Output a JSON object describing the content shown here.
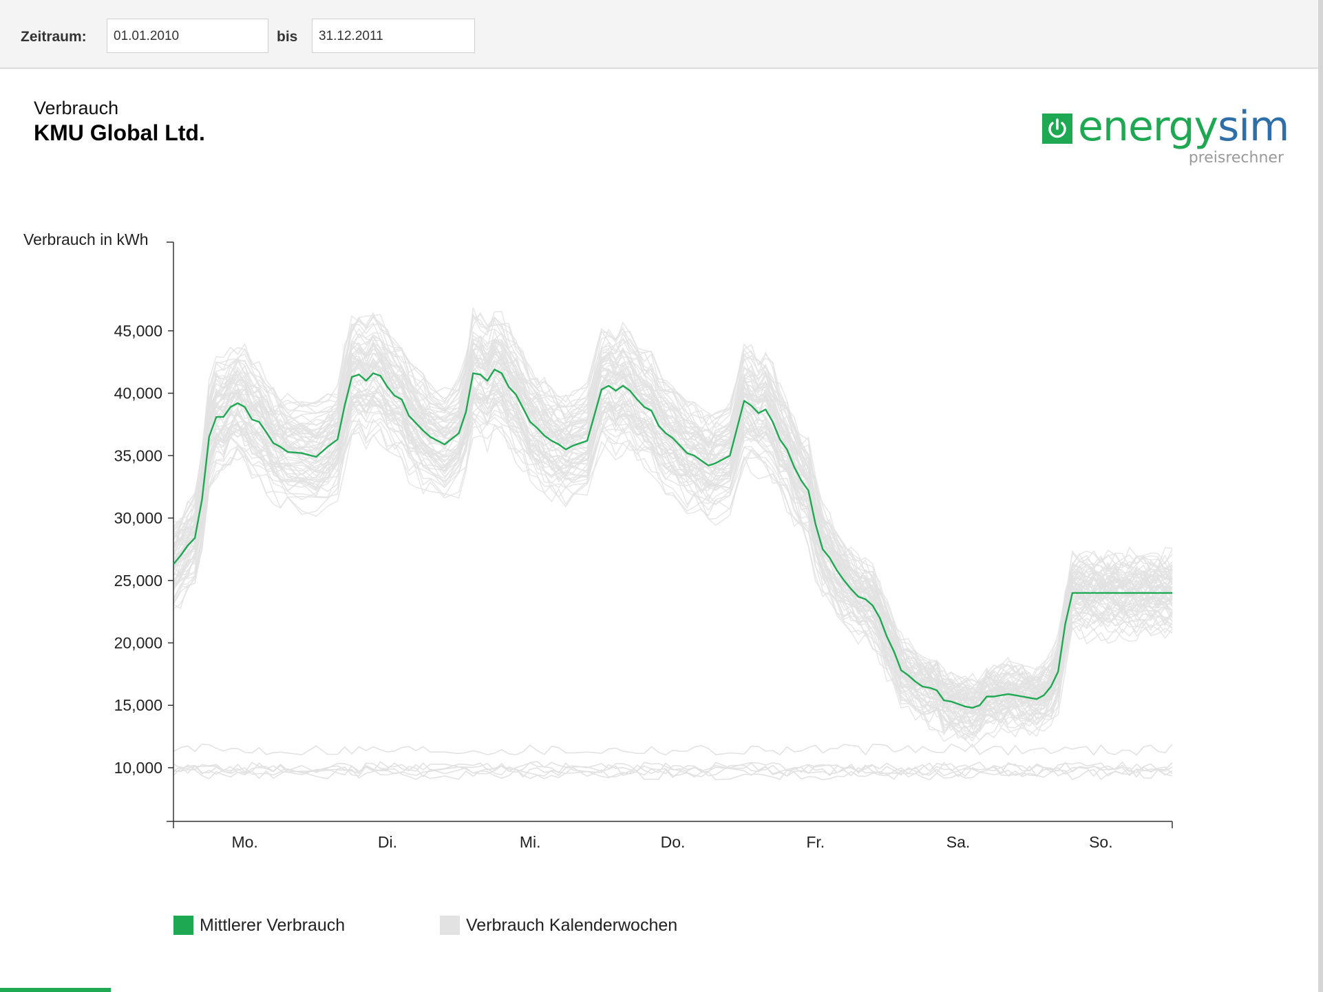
{
  "filter": {
    "period_label": "Zeitraum:",
    "from_value": "01.01.2010",
    "to_label": "bis",
    "to_value": "31.12.2011"
  },
  "header": {
    "subtitle": "Verbrauch",
    "title": "KMU Global Ltd."
  },
  "logo": {
    "word_a": "energy",
    "word_b": "sim",
    "sub": "preisrechner"
  },
  "colors": {
    "accent": "#1ea851",
    "weekly": "#e2e2e2",
    "brand_blue": "#2f6fa8"
  },
  "chart_data": {
    "type": "line",
    "title": "",
    "ylabel": "Verbrauch in kWh",
    "ylim": [
      5700,
      51000
    ],
    "yticks": [
      10000,
      15000,
      20000,
      25000,
      30000,
      35000,
      40000,
      45000
    ],
    "ytick_labels": [
      "10,000",
      "15,000",
      "20,000",
      "25,000",
      "30,000",
      "35,000",
      "40,000",
      "45,000"
    ],
    "xlim": [
      0,
      7
    ],
    "xtick_positions": [
      0.5,
      1.5,
      2.5,
      3.5,
      4.5,
      5.5,
      6.5
    ],
    "categories": [
      "Mo.",
      "Di.",
      "Mi.",
      "Do.",
      "Fr.",
      "Sa.",
      "So."
    ],
    "legend": [
      {
        "label": "Mittlerer Verbrauch",
        "color": "#1ea851"
      },
      {
        "label": "Verbrauch Kalenderwochen",
        "color": "#e2e2e2"
      }
    ],
    "series": [
      {
        "name": "Mittlerer Verbrauch",
        "color": "#1ea851",
        "x": [
          0,
          0.05,
          0.1,
          0.15,
          0.2,
          0.25,
          0.3,
          0.35,
          0.4,
          0.45,
          0.5,
          0.55,
          0.6,
          0.65,
          0.7,
          0.75,
          0.8,
          0.9,
          1.0,
          1.08,
          1.15,
          1.2,
          1.25,
          1.3,
          1.35,
          1.4,
          1.45,
          1.5,
          1.55,
          1.6,
          1.65,
          1.7,
          1.75,
          1.8,
          1.9,
          2.0,
          2.05,
          2.1,
          2.15,
          2.2,
          2.25,
          2.3,
          2.35,
          2.4,
          2.45,
          2.5,
          2.55,
          2.6,
          2.65,
          2.7,
          2.75,
          2.8,
          2.9,
          3.0,
          3.05,
          3.1,
          3.15,
          3.2,
          3.25,
          3.3,
          3.35,
          3.4,
          3.45,
          3.5,
          3.55,
          3.6,
          3.65,
          3.7,
          3.75,
          3.8,
          3.9,
          4.0,
          4.05,
          4.1,
          4.15,
          4.2,
          4.25,
          4.3,
          4.35,
          4.4,
          4.45,
          4.5,
          4.55,
          4.6,
          4.65,
          4.7,
          4.75,
          4.8,
          4.85,
          4.9,
          4.95,
          5.0,
          5.05,
          5.1,
          5.15,
          5.2,
          5.25,
          5.3,
          5.35,
          5.4,
          5.45,
          5.5,
          5.55,
          5.6,
          5.65,
          5.7,
          5.75,
          5.8,
          5.85,
          5.9,
          5.95,
          6.0,
          6.05,
          6.1,
          6.15,
          6.2,
          6.25,
          6.3,
          6.35,
          6.4,
          6.45,
          6.5,
          6.55,
          6.6,
          6.65,
          6.7,
          6.75,
          6.8,
          6.85,
          6.9,
          6.95,
          7.0
        ],
        "values": [
          26300,
          27000,
          27800,
          28400,
          31500,
          36500,
          38100,
          38100,
          38900,
          39200,
          38900,
          37900,
          37700,
          36900,
          36000,
          35700,
          35300,
          35200,
          34900,
          35700,
          36300,
          39000,
          41300,
          41500,
          41000,
          41600,
          41400,
          40500,
          39800,
          39500,
          38200,
          37600,
          37000,
          36500,
          35900,
          36800,
          38500,
          41600,
          41500,
          41000,
          41900,
          41600,
          40500,
          39900,
          38800,
          37700,
          37200,
          36600,
          36200,
          35900,
          35500,
          35800,
          36200,
          40300,
          40600,
          40200,
          40600,
          40200,
          39500,
          38900,
          38600,
          37400,
          36800,
          36400,
          35800,
          35200,
          35000,
          34600,
          34200,
          34400,
          35000,
          39400,
          39000,
          38400,
          38700,
          37700,
          36300,
          35500,
          34100,
          33000,
          32200,
          29500,
          27500,
          26800,
          25800,
          25000,
          24300,
          23700,
          23500,
          23000,
          22000,
          20500,
          19300,
          17800,
          17400,
          16900,
          16500,
          16400,
          16200,
          15400,
          15300,
          15100,
          14900,
          14800,
          15000,
          15700,
          15700,
          15800,
          15900,
          15800,
          15700,
          15600,
          15500,
          15800,
          16500,
          17700,
          21500,
          24000,
          24000,
          24000,
          24000,
          24000,
          24000,
          24000,
          24000,
          24000,
          24000,
          24000,
          24000,
          24000,
          24000,
          24000
        ]
      }
    ]
  }
}
